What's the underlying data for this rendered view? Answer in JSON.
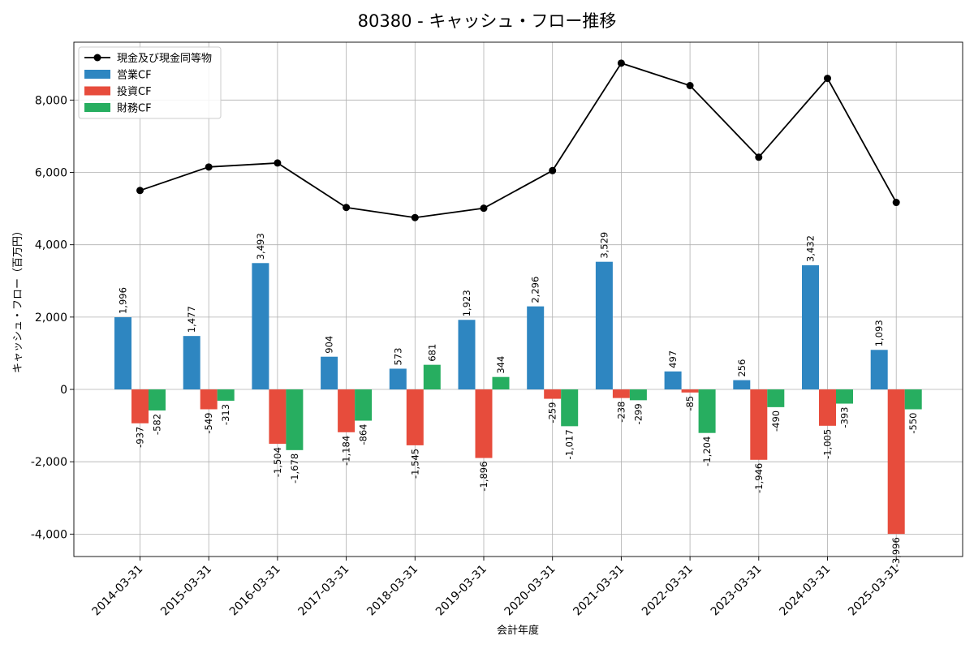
{
  "chart_data": {
    "type": "bar",
    "title": "80380 - キャッシュ・フロー推移",
    "xlabel": "会計年度",
    "ylabel": "キャッシュ・フロー（百万円）",
    "categories": [
      "2014-03-31",
      "2015-03-31",
      "2016-03-31",
      "2017-03-31",
      "2018-03-31",
      "2019-03-31",
      "2020-03-31",
      "2021-03-31",
      "2022-03-31",
      "2023-03-31",
      "2024-03-31",
      "2025-03-31"
    ],
    "series": [
      {
        "name": "営業CF",
        "kind": "bar",
        "color": "#2e86c1",
        "values": [
          1996,
          1477,
          3493,
          904,
          573,
          1923,
          2296,
          3529,
          497,
          256,
          3432,
          1093
        ],
        "labels": [
          "1,996",
          "1,477",
          "3,493",
          "904",
          "573",
          "1,923",
          "2,296",
          "3,529",
          "497",
          "256",
          "3,432",
          "1,093"
        ]
      },
      {
        "name": "投資CF",
        "kind": "bar",
        "color": "#e74c3c",
        "values": [
          -937,
          -549,
          -1504,
          -1184,
          -1545,
          -1896,
          -259,
          -238,
          -85,
          -1946,
          -1005,
          -3996
        ],
        "labels": [
          "-937",
          "-549",
          "-1,504",
          "-1,184",
          "-1,545",
          "-1,896",
          "-259",
          "-238",
          "-85",
          "-1,946",
          "-1,005",
          "-3,996"
        ]
      },
      {
        "name": "財務CF",
        "kind": "bar",
        "color": "#27ae60",
        "values": [
          -582,
          -313,
          -1678,
          -864,
          681,
          344,
          -1017,
          -299,
          -1204,
          -490,
          -393,
          -550
        ],
        "labels": [
          "-582",
          "-313",
          "-1,678",
          "-864",
          "681",
          "344",
          "-1,017",
          "-299",
          "-1,204",
          "-490",
          "-393",
          "-550"
        ]
      },
      {
        "name": "現金及び現金同等物",
        "kind": "line",
        "color": "#000000",
        "values": [
          5500,
          6150,
          6260,
          5030,
          4750,
          5010,
          6050,
          9020,
          8400,
          6420,
          8600,
          5170
        ]
      }
    ],
    "yticks": [
      -4000,
      -2000,
      0,
      2000,
      4000,
      6000,
      8000
    ],
    "ytick_labels": [
      "-4,000",
      "-2,000",
      "0",
      "2,000",
      "4,000",
      "6,000",
      "8,000"
    ],
    "ylim": [
      -4620,
      9600
    ],
    "grid": true,
    "legend": "top-left"
  }
}
